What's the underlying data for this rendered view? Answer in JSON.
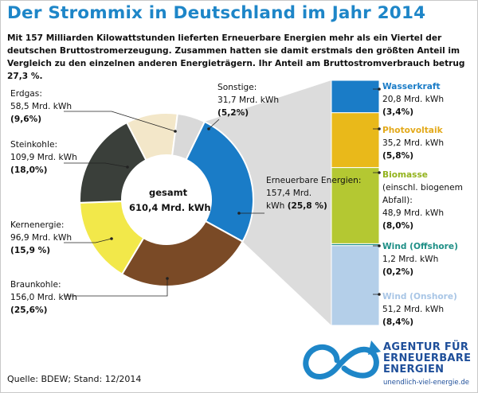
{
  "title": "Der Strommix in Deutschland im Jahr 2014",
  "subtitle": "Mit 157 Milliarden Kilowattstunden lieferten Erneuerbare Energien mehr als ein Viertel der deutschen Bruttostromerzeugung. Zusammen hatten sie damit erstmals den größten Anteil im Vergleich zu den einzelnen anderen Energieträgern. Ihr Anteil am Bruttostromverbrauch betrug 27,3 %.",
  "source": "Quelle:  BDEW; Stand: 12/2014",
  "logo": {
    "line1": "AGENTUR FÜR",
    "line2": "ERNEUERBARE",
    "line3": "ENERGIEN",
    "url": "unendlich-viel-energie.de",
    "icon": "infinity-logo-icon",
    "color": "#1f4f9a"
  },
  "chart_data": [
    {
      "type": "pie",
      "center_label": {
        "line1": "gesamt",
        "line2": "610,4 Mrd. kWh"
      },
      "slices": [
        {
          "label": "Erneuerbare Energien:",
          "value": 157.4,
          "value_text": "157,4 Mrd.",
          "unit": "kWh",
          "percent": 25.8,
          "percent_text": "(25,8 %)",
          "color": "#1a7cc7"
        },
        {
          "label": "Braunkohle:",
          "value": 156.0,
          "value_text": "156,0 Mrd. kWh",
          "percent": 25.6,
          "percent_text": "(25,6%)",
          "color": "#7a4a26"
        },
        {
          "label": "Kernenergie:",
          "value": 96.9,
          "value_text": "96,9 Mrd. kWh",
          "percent": 15.9,
          "percent_text": "(15,9 %)",
          "color": "#f2e84a"
        },
        {
          "label": "Steinkohle:",
          "value": 109.9,
          "value_text": "109,9 Mrd. kWh",
          "percent": 18.0,
          "percent_text": "(18,0%)",
          "color": "#3a3f3a"
        },
        {
          "label": "Erdgas:",
          "value": 58.5,
          "value_text": "58,5 Mrd. kWh",
          "percent": 9.6,
          "percent_text": "(9,6%)",
          "color": "#f3e7c9"
        },
        {
          "label": "Sonstige:",
          "value": 31.7,
          "value_text": "31,7 Mrd. kWh",
          "percent": 5.2,
          "percent_text": "(5,2%)",
          "color": "#d9d9d9"
        }
      ]
    },
    {
      "type": "bar",
      "stacked": true,
      "segments": [
        {
          "label": "Wasserkraft",
          "sublabel": "",
          "value": 20.8,
          "value_text": "20,8 Mrd. kWh",
          "percent": 3.4,
          "percent_text": "(3,4%)",
          "color": "#1a7cc7",
          "label_color": "#1a7cc7"
        },
        {
          "label": "Photovoltaik",
          "sublabel": "",
          "value": 35.2,
          "value_text": "35,2 Mrd. kWh",
          "percent": 5.8,
          "percent_text": "(5,8%)",
          "color": "#e9b91a",
          "label_color": "#e3a91a"
        },
        {
          "label": "Biomasse",
          "sublabel1": "(einschl. biogenem",
          "sublabel2": "Abfall):",
          "value": 48.9,
          "value_text": "48,9 Mrd. kWh",
          "percent": 8.0,
          "percent_text": "(8,0%)",
          "color": "#b4c832",
          "label_color": "#93b31e"
        },
        {
          "label": "Wind (Offshore)",
          "sublabel": "",
          "value": 1.2,
          "value_text": "1,2 Mrd. kWh",
          "percent": 0.2,
          "percent_text": "(0,2%)",
          "color": "#1e8f86",
          "label_color": "#1e8f86"
        },
        {
          "label": "Wind (Onshore)",
          "sublabel": "",
          "value": 51.2,
          "value_text": "51,2 Mrd. kWh",
          "percent": 8.4,
          "percent_text": "(8,4%)",
          "color": "#b4cfe9",
          "label_color": "#a9c6e6"
        }
      ]
    }
  ]
}
